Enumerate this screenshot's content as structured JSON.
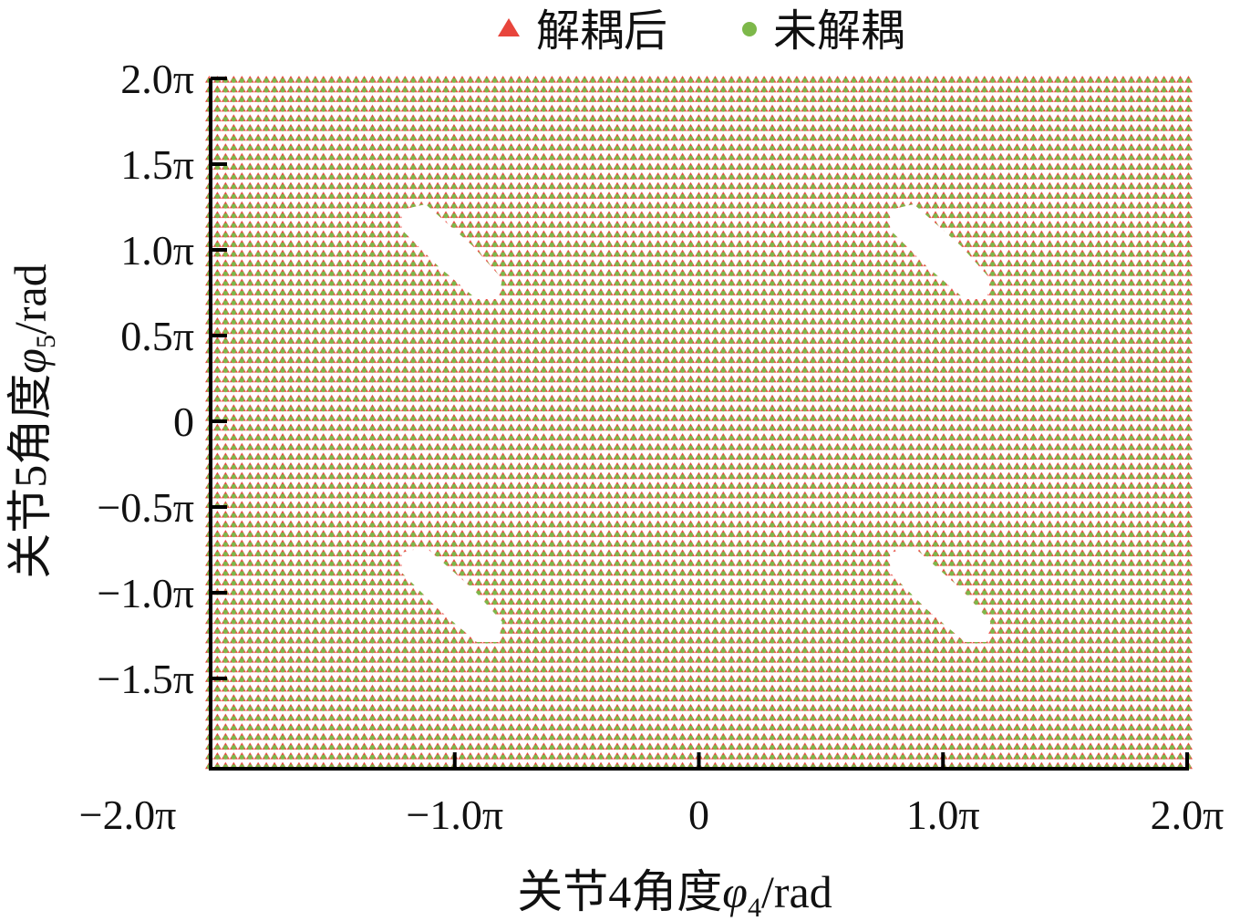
{
  "chart_data": {
    "type": "scatter",
    "title": "",
    "xlabel": "关节4角度φ4/rad",
    "ylabel": "关节5角度φ5/rad",
    "xlabel_parts": {
      "prefix": "关节4角度",
      "symbol": "φ",
      "sub": "4",
      "suffix": "/rad"
    },
    "ylabel_parts": {
      "prefix": "关节5角度",
      "symbol": "φ",
      "sub": "5",
      "suffix": "/rad"
    },
    "xlim": [
      -2.0,
      2.0
    ],
    "ylim": [
      -2.0,
      2.0
    ],
    "unit": "π rad",
    "x_ticks": [
      {
        "value": -2.0,
        "label": "−2.0π"
      },
      {
        "value": -1.0,
        "label": "−1.0π"
      },
      {
        "value": 0,
        "label": "0"
      },
      {
        "value": 1.0,
        "label": "1.0π"
      },
      {
        "value": 2.0,
        "label": "2.0π"
      }
    ],
    "y_ticks": [
      {
        "value": 2.0,
        "label": "2.0π"
      },
      {
        "value": 1.5,
        "label": "1.5π"
      },
      {
        "value": 1.0,
        "label": "1.0π"
      },
      {
        "value": 0.5,
        "label": "0.5π"
      },
      {
        "value": 0,
        "label": "0"
      },
      {
        "value": -0.5,
        "label": "−0.5π"
      },
      {
        "value": -1.0,
        "label": "−1.0π"
      },
      {
        "value": -1.5,
        "label": "−1.5π"
      }
    ],
    "grid": false,
    "legend_position": "top-center",
    "series": [
      {
        "name": "解耦后",
        "marker": "triangle",
        "color": "#e8453c"
      },
      {
        "name": "未解耦",
        "marker": "circle",
        "color": "#7db84a"
      }
    ],
    "sampling": {
      "x_step": 0.04,
      "y_step": 0.04,
      "note_dense_grid": true
    },
    "unreachable_regions": [
      {
        "center": [
          -1.0,
          1.0
        ],
        "x_range": [
          -1.2,
          -0.8
        ],
        "y_range": [
          0.7,
          1.3
        ]
      },
      {
        "center": [
          1.0,
          1.0
        ],
        "x_range": [
          0.8,
          1.2
        ],
        "y_range": [
          0.7,
          1.3
        ]
      },
      {
        "center": [
          -1.0,
          -1.0
        ],
        "x_range": [
          -1.2,
          -0.8
        ],
        "y_range": [
          -1.3,
          -0.7
        ]
      },
      {
        "center": [
          1.0,
          -1.0
        ],
        "x_range": [
          0.8,
          1.2
        ],
        "y_range": [
          -1.3,
          -0.7
        ]
      }
    ]
  }
}
